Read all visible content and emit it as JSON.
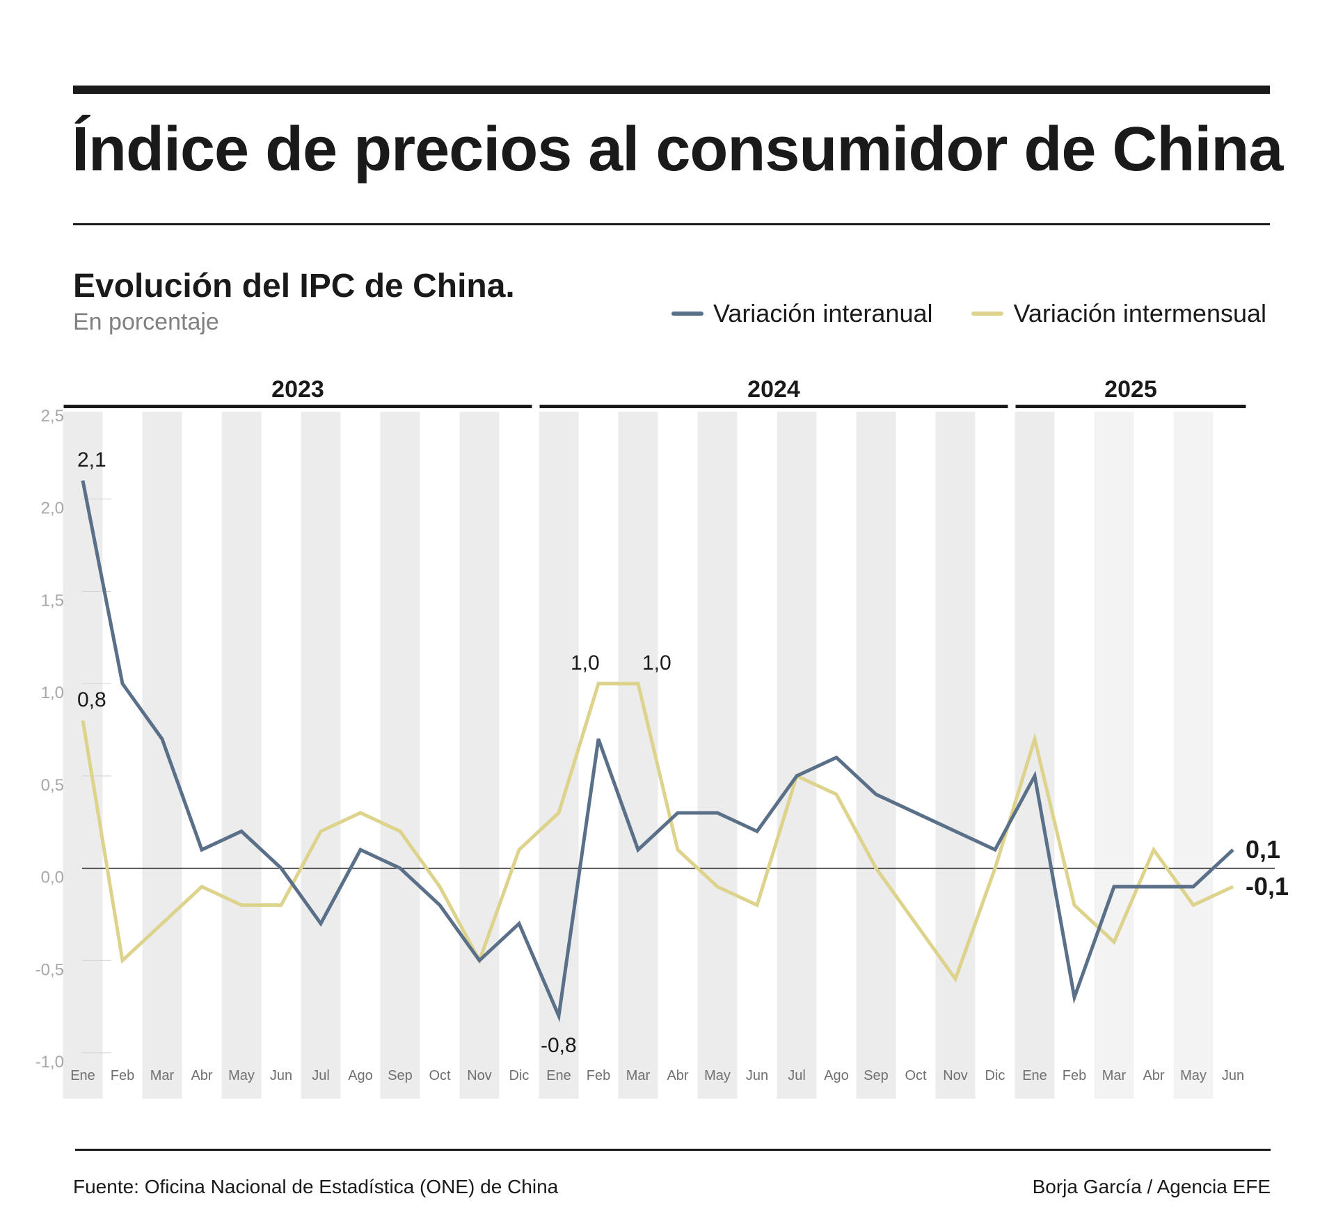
{
  "header": {
    "title": "Índice de precios al consumidor de China",
    "subtitle": "Evolución del IPC de China.",
    "unit": "En porcentaje"
  },
  "legend": {
    "items": [
      {
        "label": "Variación interanual",
        "color": "#5a7088"
      },
      {
        "label": "Variación intermensual",
        "color": "#ddd38c"
      }
    ]
  },
  "footer": {
    "source": "Fuente: Oficina Nacional de Estadística (ONE) de China",
    "credit": "Borja García / Agencia EFE"
  },
  "chart_data": {
    "type": "line",
    "title": "Evolución del IPC de China.",
    "ylabel": "En porcentaje",
    "ylim": [
      -1.0,
      2.5
    ],
    "yticks": [
      2.5,
      2.0,
      1.5,
      1.0,
      0.5,
      0.0,
      -0.5,
      -1.0
    ],
    "ytick_labels": [
      "2,5",
      "2,0",
      "1,5",
      "1,0",
      "0,5",
      "0,0",
      "-0,5",
      "-1,0"
    ],
    "years": [
      {
        "label": "2023",
        "start": 0,
        "count": 12
      },
      {
        "label": "2024",
        "start": 12,
        "count": 12
      },
      {
        "label": "2025",
        "start": 24,
        "count": 6
      }
    ],
    "categories": [
      "Ene",
      "Feb",
      "Mar",
      "Abr",
      "May",
      "Jun",
      "Jul",
      "Ago",
      "Sep",
      "Oct",
      "Nov",
      "Dic",
      "Ene",
      "Feb",
      "Mar",
      "Abr",
      "May",
      "Jun",
      "Jul",
      "Ago",
      "Sep",
      "Oct",
      "Nov",
      "Dic",
      "Ene",
      "Feb",
      "Mar",
      "Abr",
      "May",
      "Jun"
    ],
    "series": [
      {
        "name": "Variación interanual",
        "color": "#5a7088",
        "values": [
          2.1,
          1.0,
          0.7,
          0.1,
          0.2,
          0.0,
          -0.3,
          0.1,
          0.0,
          -0.2,
          -0.5,
          -0.3,
          -0.8,
          0.7,
          0.1,
          0.3,
          0.3,
          0.2,
          0.5,
          0.6,
          0.4,
          0.3,
          0.2,
          0.1,
          0.5,
          -0.7,
          -0.1,
          -0.1,
          -0.1,
          0.1
        ]
      },
      {
        "name": "Variación intermensual",
        "color": "#ddd38c",
        "values": [
          0.8,
          -0.5,
          -0.3,
          -0.1,
          -0.2,
          -0.2,
          0.2,
          0.3,
          0.2,
          -0.1,
          -0.5,
          0.1,
          0.3,
          1.0,
          1.0,
          0.1,
          -0.1,
          -0.2,
          0.5,
          0.4,
          0.0,
          -0.3,
          -0.6,
          0.0,
          0.7,
          -0.2,
          -0.4,
          0.1,
          -0.2,
          -0.1
        ]
      }
    ],
    "annotations": [
      {
        "series": 0,
        "index": 0,
        "text": "2,1",
        "pos": "above",
        "bold": false
      },
      {
        "series": 1,
        "index": 0,
        "text": "0,8",
        "pos": "above",
        "bold": false
      },
      {
        "series": 0,
        "index": 12,
        "text": "-0,8",
        "pos": "below",
        "bold": false
      },
      {
        "series": 1,
        "index": 13,
        "text": "1,0",
        "pos": "above-left",
        "bold": false
      },
      {
        "series": 1,
        "index": 14,
        "text": "1,0",
        "pos": "above-right",
        "bold": false
      },
      {
        "series": 0,
        "index": 29,
        "text": "0,1",
        "pos": "right",
        "bold": true
      },
      {
        "series": 1,
        "index": 29,
        "text": "-0,1",
        "pos": "right",
        "bold": true
      }
    ]
  }
}
